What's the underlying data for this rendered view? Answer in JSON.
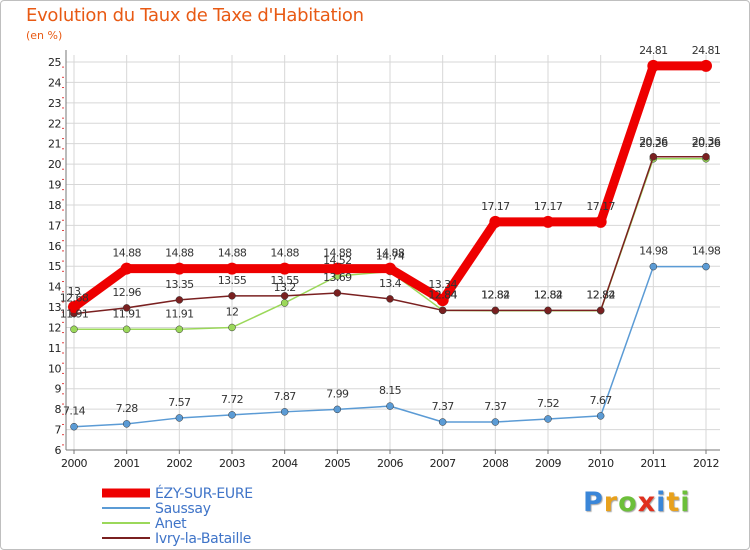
{
  "header": {
    "title": "Evolution du Taux de Taxe d'Habitation",
    "unit": "(en %)"
  },
  "logo": {
    "letters": [
      "P",
      "r",
      "o",
      "x",
      "i",
      "t",
      "i"
    ],
    "colors": [
      "#3a86d8",
      "#e8a11c",
      "#6cbf3a",
      "#e0301e",
      "#3a86d8",
      "#e8a11c",
      "#6cbf3a"
    ]
  },
  "chart_data": {
    "type": "line",
    "title": "Evolution du Taux de Taxe d'Habitation",
    "ylabel": "(en %)",
    "xlabel": "",
    "x": [
      "2000",
      "2001",
      "2002",
      "2003",
      "2004",
      "2005",
      "2006",
      "2007",
      "2008",
      "2009",
      "2010",
      "2011",
      "2012"
    ],
    "ylim": [
      6,
      25
    ],
    "yticks": [
      6,
      7,
      8,
      9,
      10,
      11,
      12,
      13,
      14,
      15,
      16,
      17,
      18,
      19,
      20,
      21,
      22,
      23,
      24,
      25
    ],
    "legend_position": "bottom-left",
    "series": [
      {
        "name": "ÉZY-SUR-EURE",
        "color": "#ee0000",
        "values": [
          13,
          14.88,
          14.88,
          14.88,
          14.88,
          14.88,
          14.88,
          13.34,
          17.17,
          17.17,
          17.17,
          24.81,
          24.81
        ],
        "labels": [
          "13",
          "14.88",
          "14.88",
          "14.88",
          "14.88",
          "14.88",
          "14.88",
          "13.34",
          "17.17",
          "17.17",
          "17.17",
          "24.81",
          "24.81"
        ]
      },
      {
        "name": "Saussay",
        "color": "#5b9bd5",
        "values": [
          7.14,
          7.28,
          7.57,
          7.72,
          7.87,
          7.99,
          8.15,
          7.37,
          7.37,
          7.52,
          7.67,
          14.98,
          14.98
        ],
        "labels": [
          "7.14",
          "7.28",
          "7.57",
          "7.72",
          "7.87",
          "7.99",
          "8.15",
          "7.37",
          "7.37",
          "7.52",
          "7.67",
          "14.98",
          "14.98"
        ]
      },
      {
        "name": "Anet",
        "color": "#9bd85a",
        "values": [
          11.91,
          11.91,
          11.91,
          12,
          13.2,
          14.52,
          14.74,
          12.84,
          12.82,
          12.82,
          12.82,
          20.26,
          20.26
        ],
        "labels": [
          "11.91",
          "11.91",
          "11.91",
          "12",
          "13.2",
          "14.52",
          "14.74",
          "12.84",
          "12.82",
          "12.82",
          "12.82",
          "20.26",
          "20.26"
        ]
      },
      {
        "name": "Ivry-la-Bataille",
        "color": "#7a2020",
        "values": [
          12.68,
          12.96,
          13.35,
          13.55,
          13.55,
          13.69,
          13.4,
          12.84,
          12.84,
          12.84,
          12.84,
          20.36,
          20.36
        ],
        "labels": [
          "12.68",
          "12.96",
          "13.35",
          "13.55",
          "13.55",
          "13.69",
          "13.4",
          "12.84",
          "12.84",
          "12.84",
          "12.84",
          "20.36",
          "20.36"
        ]
      }
    ]
  }
}
